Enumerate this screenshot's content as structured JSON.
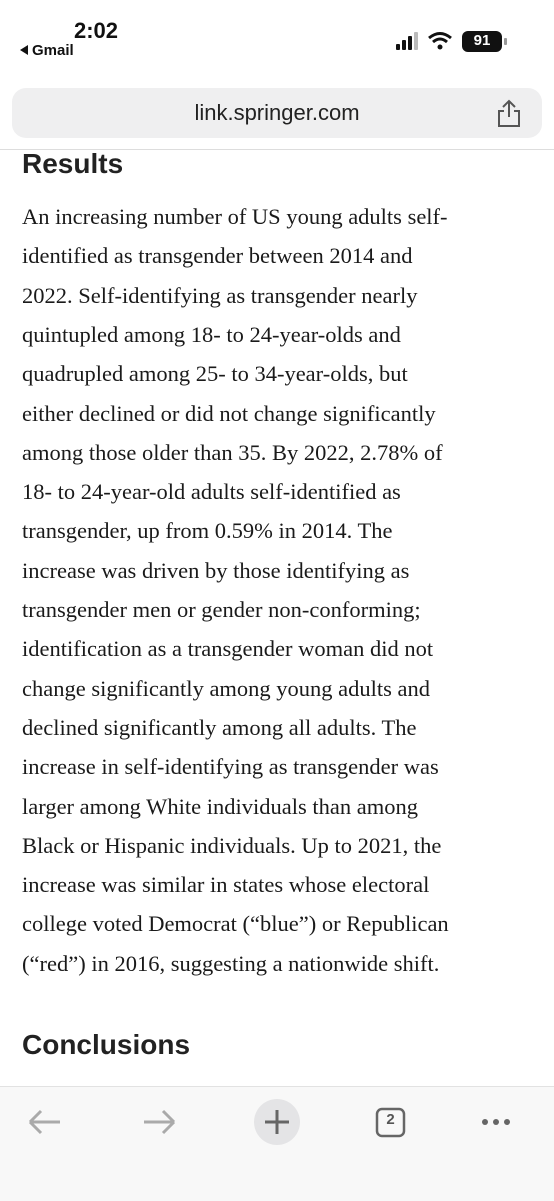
{
  "status_bar": {
    "time": "2:02",
    "back_app": "Gmail",
    "battery": "91"
  },
  "address_bar": {
    "url": "link.springer.com"
  },
  "article": {
    "results_heading": "Results",
    "results_lines": [
      "An increasing number of US young adults self-",
      "identified as transgender between 2014 and",
      "2022. Self-identifying as transgender nearly",
      "quintupled among 18- to 24-year-olds and",
      "quadrupled among 25- to 34-year-olds, but",
      "either declined or did not change significantly",
      "among those older than 35. By 2022, 2.78% of",
      "18- to 24-year-old adults self-identified as",
      "transgender, up from 0.59% in 2014. The",
      "increase was driven by those identifying as",
      "transgender men or gender non-conforming;",
      "identification as a transgender woman did not",
      "change significantly among young adults and",
      "declined significantly among all adults. The",
      "increase in self-identifying as transgender was",
      "larger among White individuals than among",
      "Black or Hispanic individuals. Up to 2021, the",
      "increase was similar in states whose electoral",
      "college voted Democrat (“blue”) or Republican",
      "(“red”) in 2016, suggesting a nationwide shift."
    ],
    "conclusions_heading": "Conclusions"
  },
  "toolbar": {
    "tab_count": "2"
  }
}
